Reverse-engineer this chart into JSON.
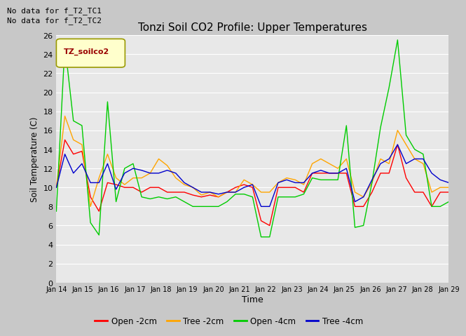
{
  "title": "Tonzi Soil CO2 Profile: Upper Temperatures",
  "xlabel": "Time",
  "ylabel": "Soil Temperature (C)",
  "top_text": [
    "No data for f_T2_TC1",
    "No data for f_T2_TC2"
  ],
  "legend_label": "TZ_soilco2",
  "ylim": [
    0,
    26
  ],
  "x_tick_labels": [
    "Jan 14",
    "Jan 15",
    "Jan 16",
    "Jan 17",
    "Jan 18",
    "Jan 19",
    "Jan 20",
    "Jan 21",
    "Jan 22",
    "Jan 23",
    "Jan 24",
    "Jan 25",
    "Jan 26",
    "Jan 27",
    "Jan 28",
    "Jan 29"
  ],
  "series_labels": [
    "Open -2cm",
    "Tree -2cm",
    "Open -4cm",
    "Tree -4cm"
  ],
  "series_colors": [
    "#ff0000",
    "#ffa500",
    "#00cc00",
    "#0000cc"
  ],
  "fig_bg": "#c8c8c8",
  "plot_bg": "#e8e8e8",
  "grid_color": "#ffffff",
  "open_2cm": [
    10.0,
    15.0,
    13.5,
    13.8,
    9.0,
    7.5,
    10.5,
    10.3,
    10.0,
    10.0,
    9.5,
    10.0,
    10.0,
    9.5,
    9.5,
    9.5,
    9.2,
    9.0,
    9.2,
    9.0,
    9.5,
    10.0,
    10.3,
    10.0,
    6.5,
    6.0,
    10.0,
    10.0,
    10.0,
    9.5,
    11.5,
    11.5,
    11.5,
    11.5,
    11.5,
    8.0,
    8.0,
    9.5,
    11.5,
    11.5,
    14.5,
    11.0,
    9.5,
    9.5,
    8.0,
    9.5,
    9.5
  ],
  "tree_2cm": [
    10.0,
    17.5,
    15.0,
    14.5,
    8.0,
    11.0,
    13.5,
    11.0,
    10.3,
    11.0,
    11.0,
    11.5,
    13.0,
    12.3,
    11.0,
    10.3,
    10.0,
    9.2,
    9.5,
    9.0,
    9.5,
    9.5,
    10.8,
    10.3,
    9.5,
    9.5,
    10.5,
    11.0,
    10.8,
    10.3,
    12.5,
    13.0,
    12.5,
    12.0,
    13.0,
    9.5,
    9.0,
    10.5,
    13.0,
    12.5,
    16.0,
    14.5,
    13.0,
    12.5,
    9.5,
    10.0,
    10.0
  ],
  "open_4cm": [
    7.5,
    25.0,
    17.0,
    16.5,
    6.3,
    5.0,
    19.0,
    8.5,
    12.0,
    12.5,
    9.0,
    8.8,
    9.0,
    8.8,
    9.0,
    8.5,
    8.0,
    8.0,
    8.0,
    8.0,
    8.5,
    9.3,
    9.3,
    9.0,
    4.8,
    4.8,
    9.0,
    9.0,
    9.0,
    9.3,
    11.0,
    10.8,
    10.8,
    10.8,
    16.5,
    5.8,
    6.0,
    10.5,
    16.3,
    20.5,
    25.5,
    15.5,
    14.0,
    13.5,
    8.0,
    8.0,
    8.5
  ],
  "tree_4cm": [
    10.0,
    13.5,
    11.5,
    12.5,
    10.5,
    10.5,
    12.5,
    9.8,
    11.5,
    12.0,
    11.8,
    11.5,
    11.5,
    11.8,
    11.5,
    10.5,
    10.0,
    9.5,
    9.5,
    9.3,
    9.5,
    9.5,
    10.0,
    10.3,
    8.0,
    8.0,
    10.5,
    10.8,
    10.5,
    10.5,
    11.5,
    11.8,
    11.5,
    11.5,
    12.0,
    8.5,
    9.0,
    10.8,
    12.5,
    13.0,
    14.5,
    12.5,
    13.0,
    13.0,
    11.5,
    10.8,
    10.5
  ]
}
